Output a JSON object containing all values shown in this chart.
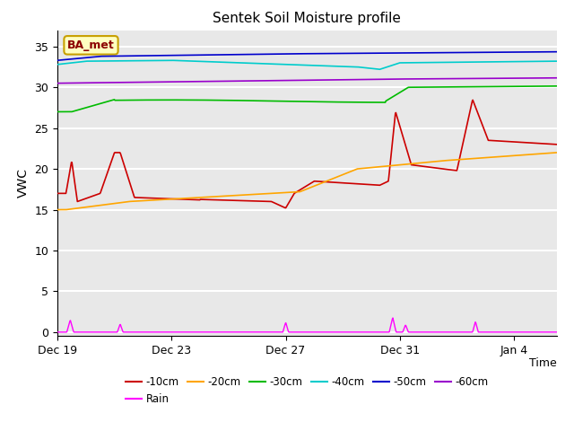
{
  "title": "Sentek Soil Moisture profile",
  "ylabel": "VWC",
  "xlabel": "Time",
  "annotation_text": "BA_met",
  "annotation_bg": "#FFFFC0",
  "annotation_border": "#C8A000",
  "ylim": [
    -0.5,
    37
  ],
  "yticks": [
    0,
    5,
    10,
    15,
    20,
    25,
    30,
    35
  ],
  "fig_bg": "#FFFFFF",
  "plot_bg": "#E8E8E8",
  "colors": {
    "10cm": "#CC0000",
    "20cm": "#FFA500",
    "30cm": "#00BB00",
    "40cm": "#00CCCC",
    "50cm": "#0000CC",
    "60cm": "#9900CC",
    "rain": "#FF00FF"
  },
  "xtick_positions": [
    0,
    4,
    8,
    12,
    16
  ],
  "xtick_labels": [
    "Dec 19",
    "Dec 23",
    "Dec 27",
    "Dec 31",
    "Jan 4"
  ],
  "xlim": [
    0,
    17.5
  ],
  "legend_labels": [
    "-10cm",
    "-20cm",
    "-30cm",
    "-40cm",
    "-50cm",
    "-60cm"
  ],
  "rain_label": "Rain"
}
